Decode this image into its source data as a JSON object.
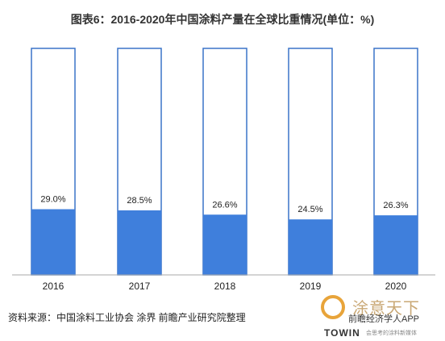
{
  "title": "图表6：2016-2020年中国涂料产量在全球比重情况(单位：%)",
  "source": "资料来源：中国涂料工业协会 涂界 前瞻产业研究院整理",
  "brand": {
    "name_cn": "涂意天下",
    "app": "前瞻经济学人APP",
    "name_en": "TOWIN",
    "tagline": "会思考的涂料新媒体"
  },
  "chart_data": {
    "type": "bar",
    "stacked_to_100": true,
    "categories": [
      "2016",
      "2017",
      "2018",
      "2019",
      "2020"
    ],
    "values": [
      29.0,
      28.5,
      26.6,
      24.5,
      26.3
    ],
    "value_labels": [
      "29.0%",
      "28.5%",
      "26.6%",
      "24.5%",
      "26.3%"
    ],
    "ylim": [
      0,
      100
    ],
    "grid": false,
    "legend": "none",
    "colors": {
      "fill": "#3f7fdc",
      "outline": "#3a74c9",
      "axis": "#aaaaaa"
    }
  }
}
